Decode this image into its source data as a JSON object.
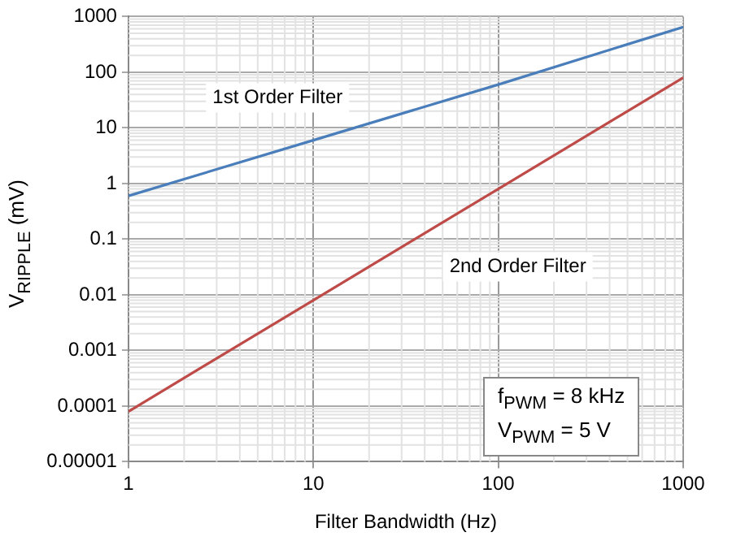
{
  "chart_data": {
    "type": "line",
    "xlabel": "Filter Bandwidth (Hz)",
    "ylabel": "V$_{RIPPLE}$ (mV)",
    "log": "xy",
    "grid": true,
    "legend": false,
    "marker": "none",
    "line_style": "solid",
    "x": [
      1,
      10,
      100,
      1000
    ],
    "series": [
      {
        "name": "1st Order Filter",
        "color": "#4a7ebb",
        "values": [
          0.6,
          6,
          60,
          650
        ]
      },
      {
        "name": "2nd Order Filter",
        "color": "#be4b48",
        "values": [
          8e-05,
          0.008,
          0.8,
          80
        ]
      }
    ],
    "xlim": [
      1,
      1000
    ],
    "xticks": [
      1,
      10,
      100,
      1000
    ],
    "ylim": [
      1e-05,
      1000
    ],
    "yticks": [
      {
        "value": 1e-05,
        "label": "0.00001"
      },
      0.0001,
      0.001,
      0.01,
      0.1,
      1,
      10,
      100,
      1000
    ],
    "annotations": [
      "f$_{PWM}$ = 8 kHz",
      "V$_{PWM}$ = 5 V"
    ]
  }
}
